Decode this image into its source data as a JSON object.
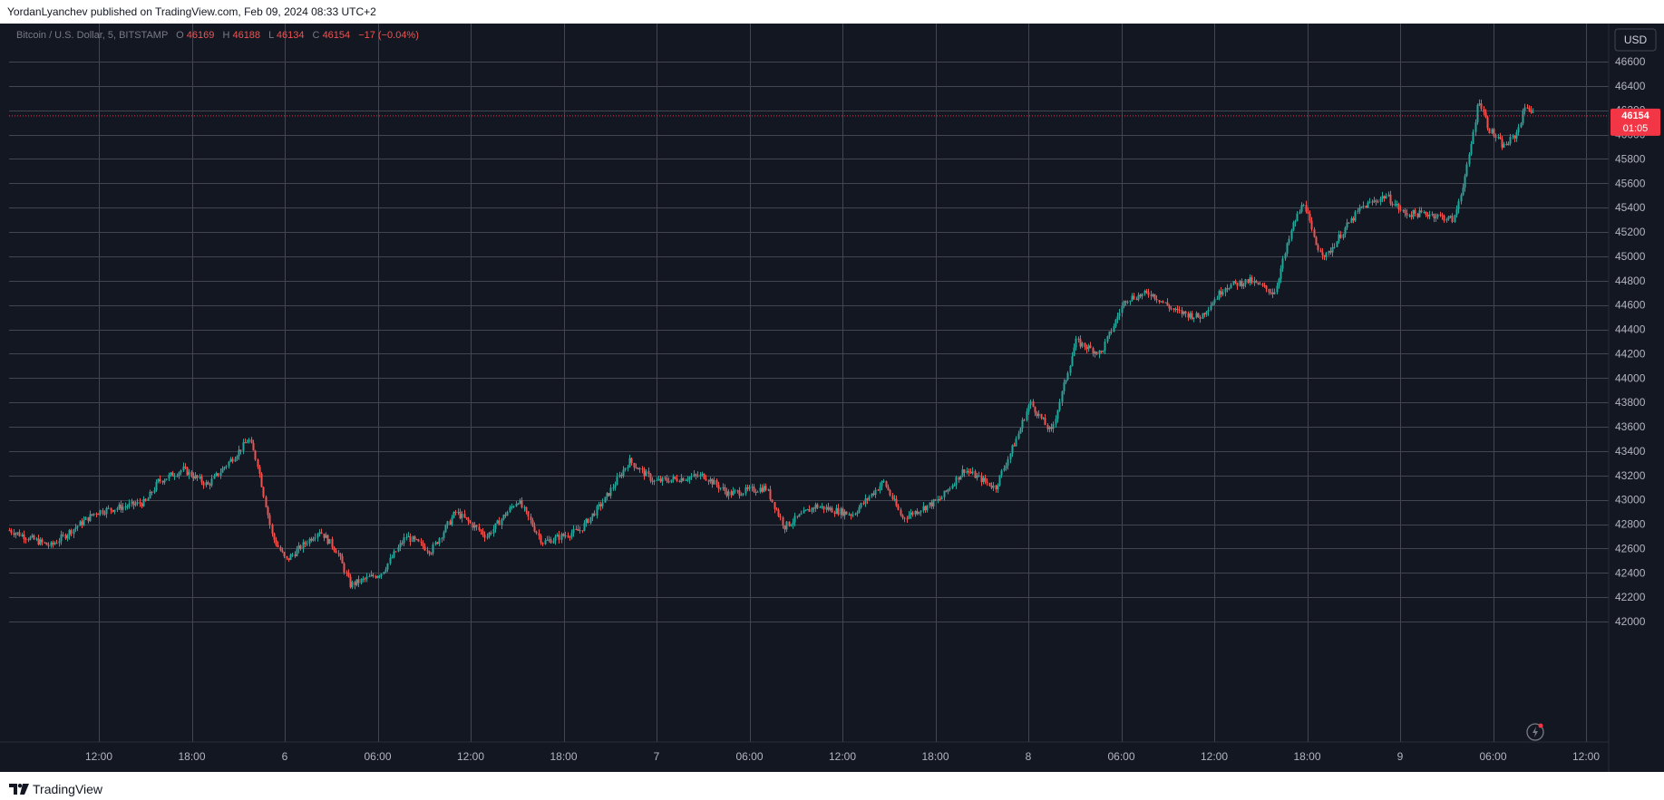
{
  "header": {
    "text": "YordanLyanchev published on TradingView.com, Feb 09, 2024 08:33 UTC+2"
  },
  "footer": {
    "brand": "TradingView",
    "logo_icon": "tradingview-logo-icon"
  },
  "symbol_legend": {
    "symbol": "Bitcoin / U.S. Dollar, 5, BITSTAMP",
    "open_label": "O",
    "open": "46169",
    "high_label": "H",
    "high": "46188",
    "low_label": "L",
    "low": "46134",
    "close_label": "C",
    "close": "46154",
    "change": "−17 (−0.04%)"
  },
  "currency_button": "USD",
  "last_price": {
    "price": "46154",
    "countdown": "01:05"
  },
  "colors": {
    "background": "#131722",
    "grid": "#434651",
    "up": "#26a69a",
    "down": "#ef5350",
    "axis_text": "#b2b5be",
    "price_badge": "#f23645"
  },
  "chart_data": {
    "type": "candlestick",
    "timeframe": "5 minutes",
    "ylim": [
      41900,
      46700
    ],
    "y_ticks": [
      42000,
      42200,
      42400,
      42600,
      42800,
      43000,
      43200,
      43400,
      43600,
      43800,
      44000,
      44200,
      44400,
      44600,
      44800,
      45000,
      45200,
      45400,
      45600,
      45800,
      46000,
      46200,
      46400,
      46600
    ],
    "x_tick_labels": [
      "12:00",
      "18:00",
      "6",
      "06:00",
      "12:00",
      "18:00",
      "7",
      "06:00",
      "12:00",
      "18:00",
      "8",
      "06:00",
      "12:00",
      "18:00",
      "9",
      "06:00",
      "12:00"
    ],
    "series": [
      {
        "values": [
          [
            0,
            42750
          ],
          [
            3.3,
            42620
          ],
          [
            7,
            42900
          ],
          [
            11,
            42980
          ],
          [
            12,
            43150
          ],
          [
            14,
            43250
          ],
          [
            16,
            43120
          ],
          [
            18.5,
            43400
          ],
          [
            19.3,
            43500
          ],
          [
            20,
            43300
          ],
          [
            21.2,
            42700
          ],
          [
            22.3,
            42500
          ],
          [
            25,
            42750
          ],
          [
            26.4,
            42580
          ],
          [
            27.5,
            42300
          ],
          [
            30,
            42400
          ],
          [
            32,
            42700
          ],
          [
            34,
            42580
          ],
          [
            36,
            42900
          ],
          [
            38.5,
            42700
          ],
          [
            41,
            43000
          ],
          [
            43,
            42650
          ],
          [
            46,
            42750
          ],
          [
            48,
            43000
          ],
          [
            50,
            43320
          ],
          [
            52,
            43150
          ],
          [
            56,
            43200
          ],
          [
            58,
            43050
          ],
          [
            61,
            43100
          ],
          [
            62.5,
            42780
          ],
          [
            65,
            42950
          ],
          [
            68,
            42880
          ],
          [
            70.5,
            43150
          ],
          [
            72,
            42850
          ],
          [
            75,
            43000
          ],
          [
            77,
            43250
          ],
          [
            79.5,
            43100
          ],
          [
            81.2,
            43500
          ],
          [
            82.3,
            43800
          ],
          [
            84,
            43550
          ],
          [
            86,
            44300
          ],
          [
            88,
            44200
          ],
          [
            90,
            44650
          ],
          [
            92,
            44700
          ],
          [
            94,
            44550
          ],
          [
            96,
            44500
          ],
          [
            98,
            44750
          ],
          [
            100,
            44800
          ],
          [
            102,
            44700
          ],
          [
            103.5,
            45250
          ],
          [
            104.4,
            45450
          ],
          [
            105.3,
            45100
          ],
          [
            106.2,
            45000
          ],
          [
            107.5,
            45200
          ],
          [
            109,
            45400
          ],
          [
            111,
            45500
          ],
          [
            112.5,
            45350
          ],
          [
            114.5,
            45350
          ],
          [
            116.5,
            45300
          ],
          [
            117.6,
            45750
          ],
          [
            118.5,
            46300
          ],
          [
            119.3,
            46050
          ],
          [
            120.5,
            45900
          ],
          [
            121.5,
            46000
          ],
          [
            122.3,
            46250
          ],
          [
            123,
            46154
          ]
        ]
      }
    ]
  }
}
